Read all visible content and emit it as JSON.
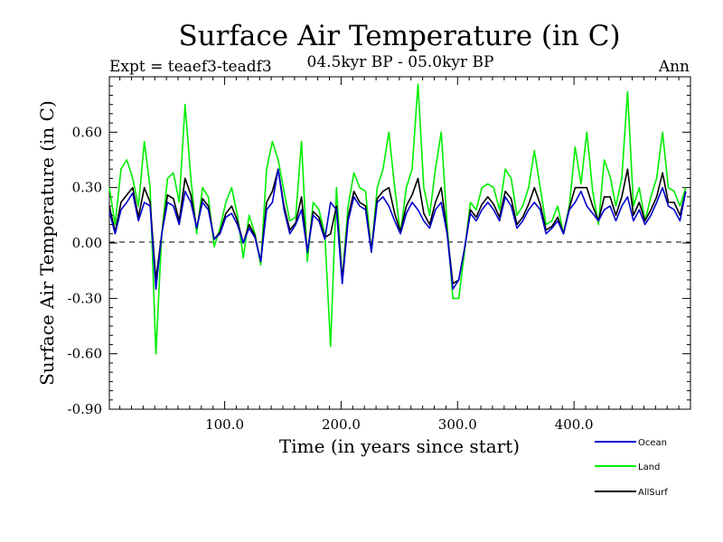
{
  "header": {
    "title": "Surface Air Temperature (in C)",
    "subtitle": "04.5kyr BP - 05.0kyr BP",
    "expt_label": "Expt = teaef3-teadf3",
    "season": "Ann"
  },
  "colors": {
    "ocean": "#0000cc",
    "land": "#00ee00",
    "allsurf": "#000000"
  },
  "chart_data": {
    "type": "line",
    "title": "Surface Air Temperature (in C)",
    "xlabel": "Time (in years since start)",
    "ylabel": "Surface Air Temperature (in C)",
    "xlim": [
      1,
      500
    ],
    "ylim": [
      -0.9,
      0.9
    ],
    "x_ticks": [
      100,
      200,
      300,
      400
    ],
    "x_tick_labels": [
      "100.0",
      "200.0",
      "300.0",
      "400.0"
    ],
    "y_ticks": [
      -0.9,
      -0.6,
      -0.3,
      0.0,
      0.3,
      0.6
    ],
    "y_tick_labels": [
      "-0.90",
      "-0.60",
      "-0.30",
      "0.00",
      "0.30",
      "0.60"
    ],
    "zero_line": true,
    "legend": {
      "position": "below-right",
      "entries": [
        "Ocean",
        "Land",
        "AllSurf"
      ]
    },
    "series": [
      {
        "name": "Ocean",
        "x_start": 1,
        "x_step": 5,
        "values": [
          0.17,
          0.05,
          0.18,
          0.22,
          0.27,
          0.12,
          0.22,
          0.2,
          -0.25,
          0.05,
          0.22,
          0.2,
          0.1,
          0.28,
          0.22,
          0.08,
          0.22,
          0.18,
          0.02,
          0.05,
          0.14,
          0.16,
          0.1,
          0.0,
          0.08,
          0.03,
          -0.1,
          0.18,
          0.22,
          0.4,
          0.18,
          0.05,
          0.1,
          0.18,
          -0.05,
          0.15,
          0.12,
          0.02,
          0.22,
          0.18,
          -0.22,
          0.12,
          0.25,
          0.2,
          0.18,
          -0.05,
          0.22,
          0.25,
          0.2,
          0.12,
          0.05,
          0.16,
          0.22,
          0.18,
          0.12,
          0.08,
          0.18,
          0.22,
          0.05,
          -0.25,
          -0.2,
          -0.03,
          0.16,
          0.12,
          0.18,
          0.22,
          0.18,
          0.12,
          0.25,
          0.2,
          0.08,
          0.12,
          0.18,
          0.22,
          0.18,
          0.05,
          0.08,
          0.12,
          0.05,
          0.18,
          0.22,
          0.28,
          0.2,
          0.16,
          0.12,
          0.18,
          0.2,
          0.12,
          0.2,
          0.25,
          0.12,
          0.18,
          0.1,
          0.15,
          0.22,
          0.3,
          0.2,
          0.18,
          0.12,
          0.28
        ],
        "stroke_ref": "colors.ocean"
      },
      {
        "name": "Land",
        "x_start": 1,
        "x_step": 5,
        "values": [
          0.3,
          0.1,
          0.4,
          0.45,
          0.35,
          0.2,
          0.55,
          0.3,
          -0.6,
          0.05,
          0.35,
          0.38,
          0.22,
          0.75,
          0.35,
          0.05,
          0.3,
          0.25,
          -0.02,
          0.08,
          0.22,
          0.3,
          0.15,
          -0.08,
          0.15,
          0.05,
          -0.12,
          0.4,
          0.55,
          0.45,
          0.28,
          0.12,
          0.14,
          0.55,
          -0.1,
          0.22,
          0.18,
          0.05,
          -0.56,
          0.3,
          -0.2,
          0.2,
          0.38,
          0.3,
          0.28,
          -0.05,
          0.3,
          0.4,
          0.6,
          0.3,
          0.05,
          0.3,
          0.4,
          0.86,
          0.3,
          0.15,
          0.4,
          0.6,
          0.1,
          -0.3,
          -0.3,
          -0.05,
          0.22,
          0.18,
          0.3,
          0.32,
          0.3,
          0.18,
          0.4,
          0.35,
          0.15,
          0.2,
          0.3,
          0.5,
          0.3,
          0.1,
          0.12,
          0.2,
          0.05,
          0.2,
          0.52,
          0.32,
          0.6,
          0.28,
          0.1,
          0.45,
          0.36,
          0.2,
          0.35,
          0.82,
          0.2,
          0.3,
          0.12,
          0.25,
          0.35,
          0.6,
          0.3,
          0.28,
          0.2,
          0.3
        ],
        "stroke_ref": "colors.land"
      },
      {
        "name": "AllSurf",
        "x_start": 1,
        "x_step": 5,
        "values": [
          0.2,
          0.06,
          0.22,
          0.26,
          0.3,
          0.14,
          0.3,
          0.22,
          -0.2,
          0.05,
          0.26,
          0.24,
          0.12,
          0.35,
          0.26,
          0.08,
          0.24,
          0.2,
          0.02,
          0.06,
          0.16,
          0.2,
          0.12,
          0.0,
          0.1,
          0.04,
          -0.1,
          0.22,
          0.28,
          0.4,
          0.2,
          0.07,
          0.11,
          0.25,
          -0.05,
          0.17,
          0.14,
          0.03,
          0.05,
          0.2,
          -0.2,
          0.14,
          0.28,
          0.22,
          0.2,
          -0.04,
          0.24,
          0.28,
          0.3,
          0.16,
          0.06,
          0.2,
          0.26,
          0.35,
          0.16,
          0.1,
          0.22,
          0.3,
          0.06,
          -0.22,
          -0.2,
          -0.03,
          0.18,
          0.14,
          0.21,
          0.25,
          0.21,
          0.14,
          0.28,
          0.24,
          0.1,
          0.14,
          0.21,
          0.3,
          0.21,
          0.07,
          0.09,
          0.14,
          0.05,
          0.19,
          0.3,
          0.3,
          0.3,
          0.2,
          0.12,
          0.25,
          0.25,
          0.15,
          0.25,
          0.4,
          0.15,
          0.22,
          0.12,
          0.18,
          0.25,
          0.38,
          0.22,
          0.22,
          0.15,
          0.28
        ],
        "stroke_ref": "colors.allsurf"
      }
    ]
  }
}
